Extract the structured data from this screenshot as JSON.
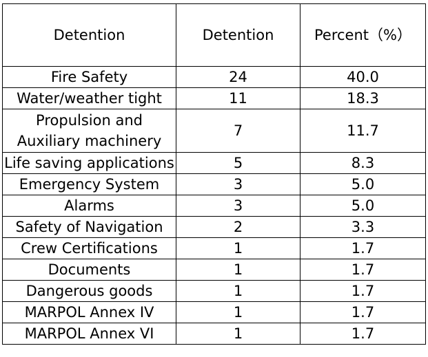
{
  "table": {
    "header": [
      "Detention",
      "Detention",
      "Percent（%）"
    ],
    "rows": [
      [
        "Fire Safety",
        "24",
        "40.0"
      ],
      [
        "Water/weather tight",
        "11",
        "18.3"
      ],
      [
        "Propulsion and Auxiliary machinery",
        "7",
        "11.7"
      ],
      [
        "Life saving  applications",
        "5",
        "8.3"
      ],
      [
        "Emergency System",
        "3",
        "5.0"
      ],
      [
        "Alarms",
        "3",
        "5.0"
      ],
      [
        "Safety of Navigation",
        "2",
        "3.3"
      ],
      [
        "Crew Certifications",
        "1",
        "1.7"
      ],
      [
        "Documents",
        "1",
        "1.7"
      ],
      [
        "Dangerous goods",
        "1",
        "1.7"
      ],
      [
        "MARPOL Annex IV",
        "1",
        "1.7"
      ],
      [
        "MARPOL Annex VI",
        "1",
        "1.7"
      ]
    ]
  }
}
